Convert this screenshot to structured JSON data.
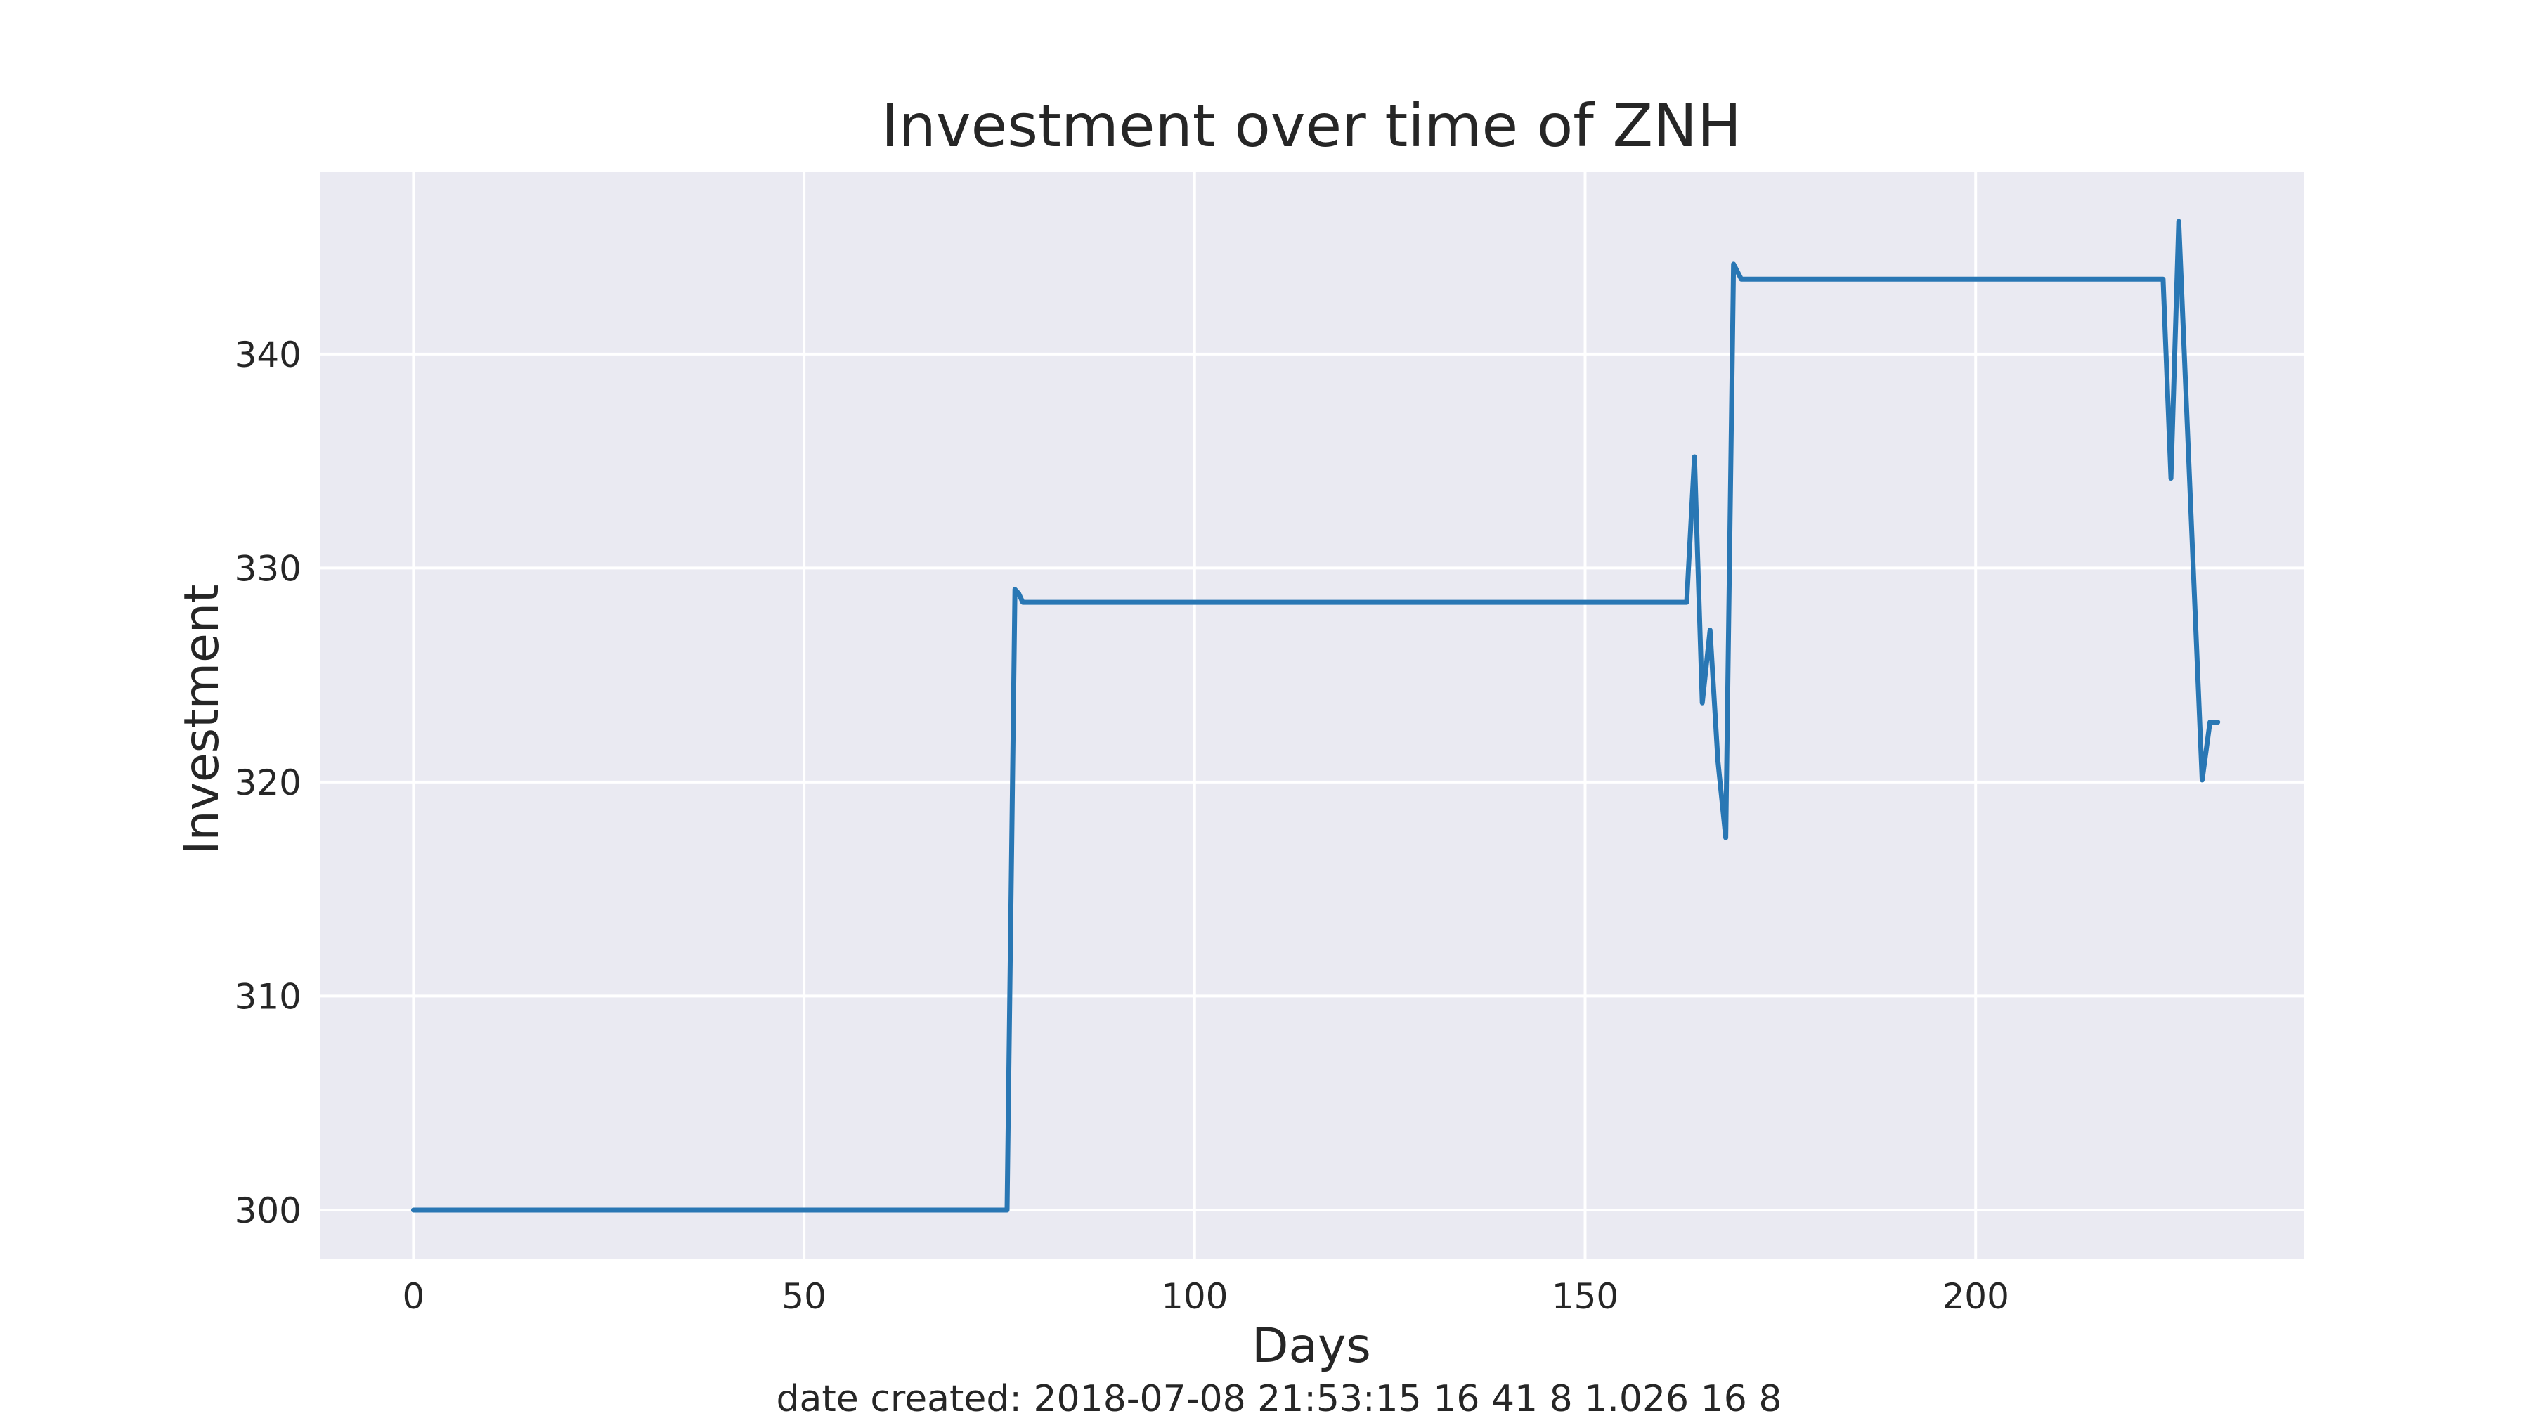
{
  "chart_data": {
    "type": "line",
    "title": "Investment over time of ZNH",
    "xlabel": "Days",
    "ylabel": "Investment",
    "xlim": [
      -12,
      242
    ],
    "ylim": [
      297.7,
      348.5
    ],
    "xticks": [
      0,
      50,
      100,
      150,
      200
    ],
    "xtick_labels": [
      "0",
      "50",
      "100",
      "150",
      "200"
    ],
    "yticks": [
      300,
      310,
      320,
      330,
      340
    ],
    "ytick_labels": [
      "300",
      "310",
      "320",
      "330",
      "340"
    ],
    "grid": true,
    "legend": false,
    "background_color": "#eaeaf2",
    "grid_color": "#ffffff",
    "line_color": "#2977b4",
    "series": [
      {
        "x": [
          0,
          76,
          77,
          77.5,
          78,
          163,
          164,
          165,
          166,
          167,
          168,
          169,
          170,
          224,
          225,
          226,
          229,
          230,
          231
        ],
        "y": [
          300,
          300,
          329,
          328.8,
          328.4,
          328.4,
          335.2,
          323.7,
          327.1,
          321,
          317.4,
          344.2,
          343.5,
          343.5,
          334.2,
          346.2,
          320.1,
          322.8,
          322.8
        ]
      }
    ]
  },
  "caption": "date created: 2018-07-08 21:53:15 16 41 8 1.026 16 8"
}
